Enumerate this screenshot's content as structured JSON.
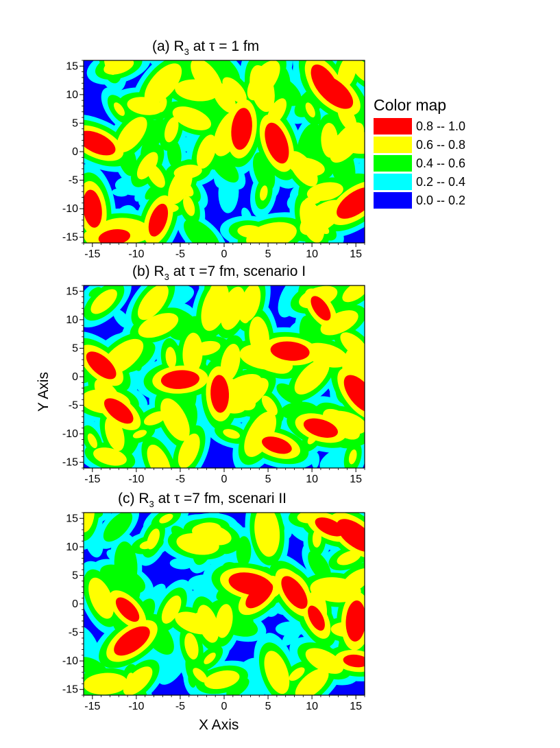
{
  "chart_data": [
    {
      "type": "heatmap",
      "panel": "a",
      "title_prefix": "(a) R",
      "title_subscript": "3",
      "title_suffix": " at τ = 1 fm",
      "xlim": [
        -16,
        16
      ],
      "ylim": [
        -16,
        16
      ],
      "xticks": [
        -15,
        -10,
        -5,
        0,
        5,
        10,
        15
      ],
      "yticks": [
        -15,
        -10,
        -5,
        0,
        5,
        10,
        15
      ],
      "grid": false,
      "hotspots": [
        {
          "x": 11.5,
          "y": 12,
          "level": 4
        },
        {
          "x": 12.5,
          "y": 10.5,
          "level": 4
        },
        {
          "x": 4.5,
          "y": 12.5,
          "level": 3
        },
        {
          "x": -12,
          "y": 15,
          "level": 3
        },
        {
          "x": -2,
          "y": 13,
          "level": 3
        },
        {
          "x": 6,
          "y": 7,
          "level": 3
        },
        {
          "x": 2,
          "y": 4,
          "level": 4
        },
        {
          "x": 6,
          "y": 1.5,
          "level": 4
        },
        {
          "x": -14.5,
          "y": 1.5,
          "level": 4
        },
        {
          "x": -10.5,
          "y": 3,
          "level": 3
        },
        {
          "x": -2,
          "y": 0,
          "level": 3
        },
        {
          "x": 12,
          "y": 2,
          "level": 3
        },
        {
          "x": 9,
          "y": -3,
          "level": 3
        },
        {
          "x": -7.5,
          "y": -12,
          "level": 4
        },
        {
          "x": -12.5,
          "y": -15,
          "level": 4
        },
        {
          "x": -15,
          "y": -10,
          "level": 4
        },
        {
          "x": 15,
          "y": -9,
          "level": 4
        },
        {
          "x": 11.5,
          "y": -7,
          "level": 3
        },
        {
          "x": -5,
          "y": -6,
          "level": 3
        },
        {
          "x": 3,
          "y": -14,
          "level": 3
        },
        {
          "x": 14,
          "y": 14,
          "level": 3
        },
        {
          "x": -9,
          "y": 8,
          "level": 3
        },
        {
          "x": 0,
          "y": 9.5,
          "level": 3
        },
        {
          "x": 14,
          "y": 6,
          "level": 3
        }
      ]
    },
    {
      "type": "heatmap",
      "panel": "b",
      "title_prefix": "(b) R",
      "title_subscript": "3",
      "title_suffix": " at τ =7 fm, scenario I",
      "xlim": [
        -16,
        16
      ],
      "ylim": [
        -16,
        16
      ],
      "xticks": [
        -15,
        -10,
        -5,
        0,
        5,
        10,
        15
      ],
      "yticks": [
        -15,
        -10,
        -5,
        0,
        5,
        10,
        15
      ],
      "grid": false,
      "hotspots": [
        {
          "x": -14,
          "y": 2,
          "level": 4
        },
        {
          "x": -12,
          "y": -6,
          "level": 4
        },
        {
          "x": -5,
          "y": -0.5,
          "level": 4
        },
        {
          "x": -0.5,
          "y": -3,
          "level": 4
        },
        {
          "x": 7.5,
          "y": 4.5,
          "level": 4
        },
        {
          "x": 11,
          "y": -9,
          "level": 4
        },
        {
          "x": 15.5,
          "y": -3,
          "level": 4
        },
        {
          "x": 6,
          "y": -12,
          "level": 4
        },
        {
          "x": 10,
          "y": 0,
          "level": 3
        },
        {
          "x": -7.5,
          "y": 9,
          "level": 3
        },
        {
          "x": 3,
          "y": -3,
          "level": 3
        },
        {
          "x": -2,
          "y": 5,
          "level": 3
        },
        {
          "x": 11,
          "y": 12,
          "level": 4
        },
        {
          "x": -13,
          "y": -14,
          "level": 3
        },
        {
          "x": 15,
          "y": 15,
          "level": 3
        },
        {
          "x": -4,
          "y": -13,
          "level": 3
        },
        {
          "x": 1,
          "y": 12,
          "level": 3
        },
        {
          "x": 4,
          "y": 7,
          "level": 3
        }
      ]
    },
    {
      "type": "heatmap",
      "panel": "c",
      "title_prefix": "(c) R",
      "title_subscript": "3",
      "title_suffix": " at τ =7 fm, scenari II",
      "xlim": [
        -16,
        16
      ],
      "ylim": [
        -16,
        16
      ],
      "xticks": [
        -15,
        -10,
        -5,
        0,
        5,
        10,
        15
      ],
      "yticks": [
        -15,
        -10,
        -5,
        0,
        5,
        10,
        15
      ],
      "grid": false,
      "hotspots": [
        {
          "x": 12,
          "y": 13.5,
          "level": 4
        },
        {
          "x": 15,
          "y": 12,
          "level": 4
        },
        {
          "x": -11,
          "y": -1,
          "level": 4
        },
        {
          "x": 3,
          "y": 3.5,
          "level": 4
        },
        {
          "x": 4,
          "y": 1.5,
          "level": 4
        },
        {
          "x": 15,
          "y": -3,
          "level": 4
        },
        {
          "x": 15,
          "y": -10,
          "level": 4
        },
        {
          "x": -10.5,
          "y": -6.5,
          "level": 4
        },
        {
          "x": 10.5,
          "y": -2.5,
          "level": 4
        },
        {
          "x": -3,
          "y": 10.5,
          "level": 3
        },
        {
          "x": -2,
          "y": 13,
          "level": 3
        },
        {
          "x": -14,
          "y": 1,
          "level": 3
        },
        {
          "x": 8,
          "y": 2,
          "level": 4
        },
        {
          "x": 0,
          "y": -3,
          "level": 3
        },
        {
          "x": -6,
          "y": -1,
          "level": 3
        },
        {
          "x": 15,
          "y": 4,
          "level": 3
        },
        {
          "x": 6,
          "y": -12,
          "level": 3
        },
        {
          "x": -13.5,
          "y": -14,
          "level": 3
        },
        {
          "x": 10,
          "y": -14,
          "level": 3
        }
      ]
    }
  ],
  "axes": {
    "xlabel": "X Axis",
    "ylabel": "Y Axis"
  },
  "legend": {
    "title": "Color map",
    "placement": "right of panel (a)",
    "entries": [
      {
        "color": "#ff0000",
        "range": "0.8  --  1.0"
      },
      {
        "color": "#ffff00",
        "range": "0.6  --  0.8"
      },
      {
        "color": "#00ff00",
        "range": "0.4  --  0.6"
      },
      {
        "color": "#00ffff",
        "range": "0.2  --  0.4"
      },
      {
        "color": "#0000ff",
        "range": "0.0  --  0.2"
      }
    ]
  },
  "colors": {
    "level_0": "#0000ff",
    "level_1": "#00ffff",
    "level_2": "#00ff00",
    "level_3": "#ffff00",
    "level_4": "#ff0000"
  }
}
